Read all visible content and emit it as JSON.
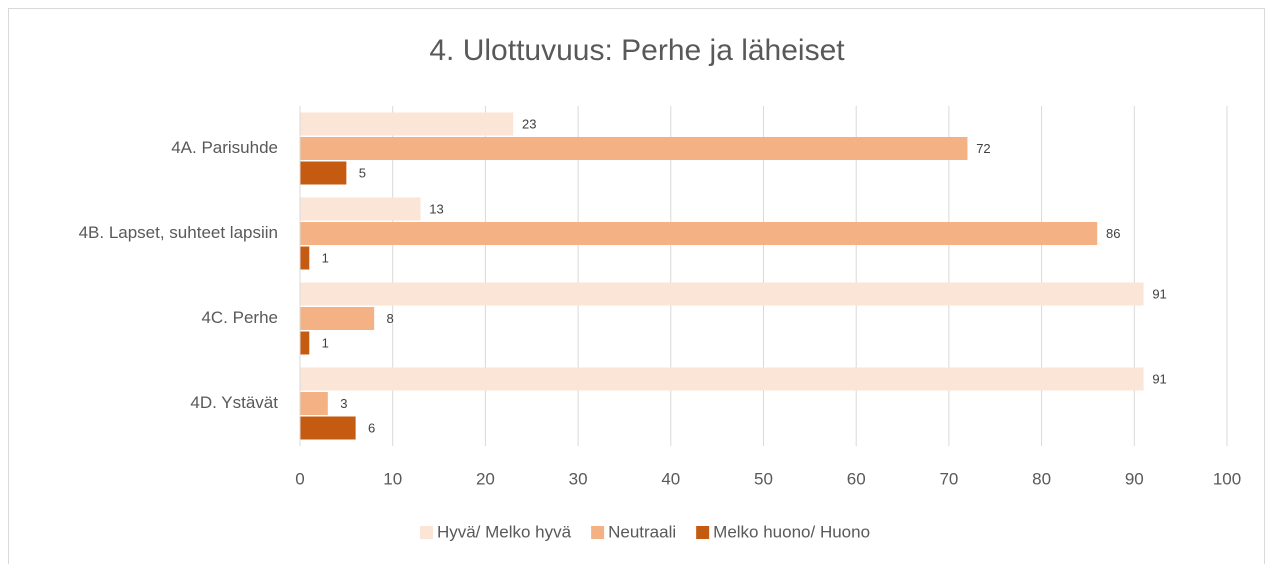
{
  "chart_data": {
    "type": "bar",
    "orientation": "horizontal",
    "title": "4. Ulottuvuus: Perhe ja läheiset",
    "categories": [
      "4A. Parisuhde",
      "4B. Lapset, suhteet lapsiin",
      "4C. Perhe",
      "4D. Ystävät"
    ],
    "series": [
      {
        "name": "Hyvä/ Melko hyvä",
        "color": "#fbe5d6",
        "values": [
          23,
          13,
          91,
          91
        ]
      },
      {
        "name": "Neutraali",
        "color": "#f4b183",
        "values": [
          72,
          86,
          8,
          3
        ]
      },
      {
        "name": "Melko huono/ Huono",
        "color": "#c55a11",
        "values": [
          5,
          1,
          1,
          6
        ]
      }
    ],
    "xlim": [
      0,
      100
    ],
    "xticks": [
      0,
      10,
      20,
      30,
      40,
      50,
      60,
      70,
      80,
      90,
      100
    ],
    "grid": true,
    "legend": "bottom"
  }
}
